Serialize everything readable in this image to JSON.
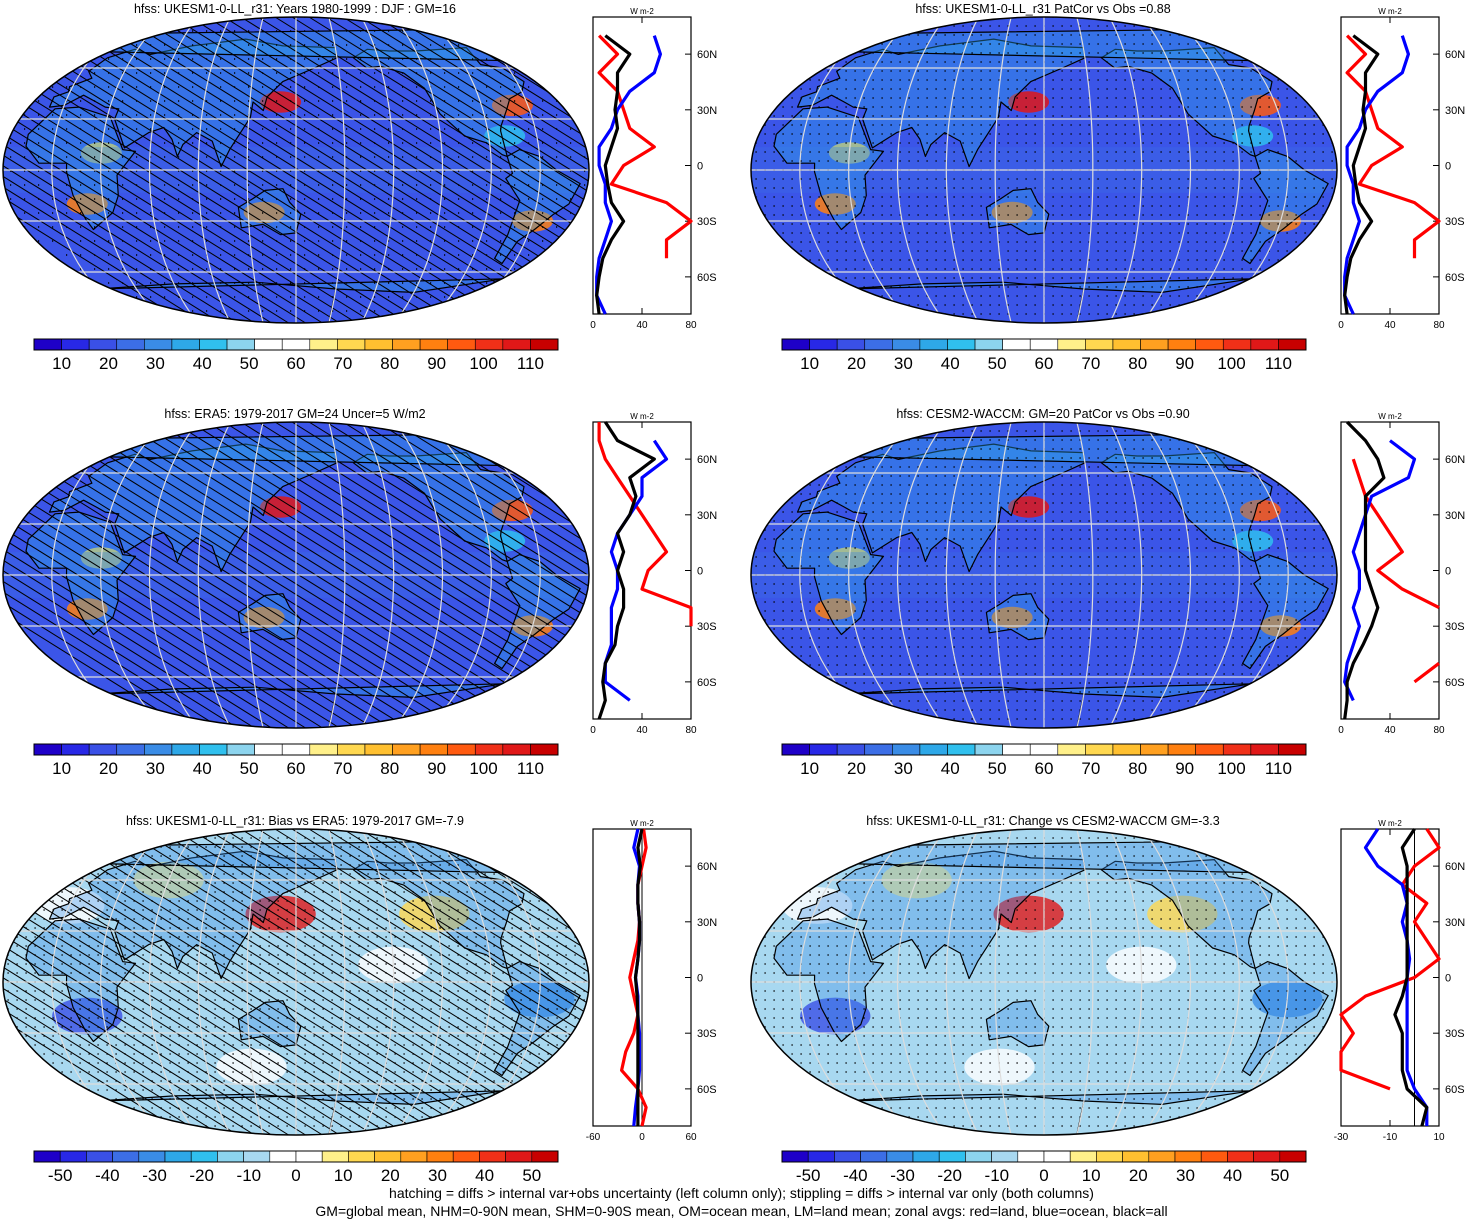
{
  "panels": [
    {
      "title": "hfss: UKESM1-0-LL_r31: Years 1980-1999 : DJF : GM=16",
      "kind": "abs",
      "hatch": true,
      "stipple": "light",
      "colorbar_labels": [
        "10",
        "20",
        "30",
        "40",
        "50",
        "60",
        "70",
        "80",
        "90",
        "100",
        "110"
      ],
      "zonal": {
        "units": "W m-2",
        "x_ticks": [
          "0",
          "40",
          "80"
        ],
        "y_ticks": [
          "60N",
          "30N",
          "0",
          "30S",
          "60S"
        ]
      }
    },
    {
      "title": "hfss: UKESM1-0-LL_r31 PatCor vs Obs =0.88",
      "kind": "abs",
      "hatch": false,
      "stipple": "dense",
      "colorbar_labels": [
        "10",
        "20",
        "30",
        "40",
        "50",
        "60",
        "70",
        "80",
        "90",
        "100",
        "110"
      ],
      "zonal": {
        "units": "W m-2",
        "x_ticks": [
          "0",
          "40",
          "80"
        ],
        "y_ticks": [
          "60N",
          "30N",
          "0",
          "30S",
          "60S"
        ]
      }
    },
    {
      "title": "hfss: ERA5: 1979-2017 GM=24 Uncer=5 W/m2",
      "kind": "abs",
      "hatch": true,
      "stipple": "none",
      "colorbar_labels": [
        "10",
        "20",
        "30",
        "40",
        "50",
        "60",
        "70",
        "80",
        "90",
        "100",
        "110"
      ],
      "zonal": {
        "units": "W m-2",
        "x_ticks": [
          "0",
          "40",
          "80"
        ],
        "y_ticks": [
          "60N",
          "30N",
          "0",
          "30S",
          "60S"
        ]
      }
    },
    {
      "title": "hfss: CESM2-WACCM: GM=20 PatCor vs Obs =0.90",
      "kind": "abs",
      "hatch": false,
      "stipple": "dense",
      "colorbar_labels": [
        "10",
        "20",
        "30",
        "40",
        "50",
        "60",
        "70",
        "80",
        "90",
        "100",
        "110"
      ],
      "zonal": {
        "units": "W m-2",
        "x_ticks": [
          "0",
          "40",
          "80"
        ],
        "y_ticks": [
          "60N",
          "30N",
          "0",
          "30S",
          "60S"
        ]
      }
    },
    {
      "title": "hfss: UKESM1-0-LL_r31: Bias vs ERA5: 1979-2017 GM=-7.9",
      "kind": "diff",
      "hatch": true,
      "stipple": "dense",
      "colorbar_labels": [
        "-50",
        "-40",
        "-30",
        "-20",
        "-10",
        "0",
        "10",
        "20",
        "30",
        "40",
        "50"
      ],
      "zonal": {
        "units": "W m-2",
        "x_ticks": [
          "-60",
          "0",
          "60"
        ],
        "y_ticks": [
          "60N",
          "30N",
          "0",
          "30S",
          "60S"
        ]
      }
    },
    {
      "title": "hfss: UKESM1-0-LL_r31: Change vs CESM2-WACCM GM=-3.3",
      "kind": "diff",
      "hatch": false,
      "stipple": "dense",
      "colorbar_labels": [
        "-50",
        "-40",
        "-30",
        "-20",
        "-10",
        "0",
        "10",
        "20",
        "30",
        "40",
        "50"
      ],
      "zonal": {
        "units": "W m-2",
        "x_ticks": [
          "-30",
          "-10",
          "10"
        ],
        "y_ticks": [
          "60N",
          "30N",
          "0",
          "30S",
          "60S"
        ]
      }
    }
  ],
  "colors": {
    "abs_scale": [
      "#1e00c8",
      "#2828e6",
      "#3a50e6",
      "#3c6ee6",
      "#3a8ce6",
      "#2ea8e8",
      "#30c0ee",
      "#8cd4ee",
      "#ffffff",
      "#ffffff",
      "#fff08a",
      "#ffd850",
      "#ffc030",
      "#ffa020",
      "#ff8010",
      "#ff5a10",
      "#f03018",
      "#e01818",
      "#c80000"
    ],
    "diff_scale": [
      "#1e00c8",
      "#2828e6",
      "#3a50e6",
      "#3c6ee6",
      "#3a8ce6",
      "#2ea8e8",
      "#30c0ee",
      "#8cd4ee",
      "#a8d8f0",
      "#ffffff",
      "#ffffff",
      "#fff08a",
      "#ffd850",
      "#ffc030",
      "#ffa020",
      "#ff8010",
      "#ff5a10",
      "#f03018",
      "#e01818",
      "#c80000"
    ],
    "land_line": "#ff0000",
    "ocean_line": "#0000ff",
    "all_line": "#000000"
  },
  "chart_data": [
    {
      "type": "heatmap",
      "title": "hfss: UKESM1-0-LL_r31: Years 1980-1999 : DJF : GM=16",
      "colorbar": [
        10,
        20,
        30,
        40,
        50,
        60,
        70,
        80,
        90,
        100,
        110
      ],
      "zonal_mean": {
        "lat": [
          80,
          70,
          60,
          50,
          40,
          30,
          20,
          10,
          0,
          -10,
          -20,
          -30,
          -40,
          -50,
          -60,
          -70,
          -80
        ],
        "land": [
          null,
          5,
          20,
          5,
          20,
          25,
          30,
          50,
          25,
          15,
          60,
          85,
          60,
          60,
          null,
          5,
          null
        ],
        "ocean": [
          null,
          50,
          55,
          50,
          30,
          20,
          15,
          5,
          5,
          10,
          10,
          15,
          10,
          5,
          3,
          3,
          10
        ],
        "all": [
          null,
          10,
          30,
          20,
          20,
          18,
          20,
          15,
          10,
          12,
          15,
          25,
          15,
          8,
          5,
          3,
          5
        ]
      }
    },
    {
      "type": "heatmap",
      "title": "hfss: UKESM1-0-LL_r31 PatCor vs Obs =0.88",
      "colorbar": [
        10,
        20,
        30,
        40,
        50,
        60,
        70,
        80,
        90,
        100,
        110
      ],
      "zonal_mean": {
        "lat": [
          80,
          70,
          60,
          50,
          40,
          30,
          20,
          10,
          0,
          -10,
          -20,
          -30,
          -40,
          -50,
          -60,
          -70,
          -80
        ],
        "land": [
          null,
          5,
          20,
          5,
          20,
          25,
          30,
          50,
          25,
          15,
          60,
          85,
          60,
          60,
          null,
          5,
          null
        ],
        "ocean": [
          null,
          50,
          55,
          50,
          30,
          20,
          15,
          5,
          5,
          10,
          10,
          15,
          10,
          5,
          3,
          3,
          10
        ],
        "all": [
          null,
          10,
          30,
          20,
          20,
          18,
          20,
          15,
          10,
          12,
          15,
          25,
          15,
          8,
          5,
          3,
          5
        ]
      }
    },
    {
      "type": "heatmap",
      "title": "hfss: ERA5: 1979-2017 GM=24 Uncer=5 W/m2",
      "colorbar": [
        10,
        20,
        30,
        40,
        50,
        60,
        70,
        80,
        90,
        100,
        110
      ],
      "zonal_mean": {
        "lat": [
          80,
          70,
          60,
          50,
          40,
          30,
          20,
          10,
          0,
          -10,
          -20,
          -30,
          -40,
          -50,
          -60,
          -70,
          -80
        ],
        "land": [
          5,
          5,
          10,
          20,
          30,
          40,
          50,
          60,
          45,
          40,
          80,
          90,
          null,
          70,
          null,
          5,
          null
        ],
        "ocean": [
          null,
          50,
          60,
          40,
          40,
          30,
          20,
          15,
          20,
          20,
          15,
          15,
          15,
          10,
          10,
          30,
          null
        ],
        "all": [
          10,
          20,
          50,
          30,
          35,
          30,
          20,
          25,
          20,
          25,
          25,
          20,
          18,
          10,
          8,
          10,
          5
        ]
      }
    },
    {
      "type": "heatmap",
      "title": "hfss: CESM2-WACCM: GM=20 PatCor vs Obs =0.90",
      "colorbar": [
        10,
        20,
        30,
        40,
        50,
        60,
        70,
        80,
        90,
        100,
        110
      ],
      "zonal_mean": {
        "lat": [
          80,
          70,
          60,
          50,
          40,
          30,
          20,
          10,
          0,
          -10,
          -20,
          -30,
          -40,
          -50,
          -60,
          -70,
          -80
        ],
        "land": [
          null,
          null,
          10,
          15,
          20,
          30,
          40,
          50,
          30,
          50,
          80,
          null,
          null,
          80,
          60,
          null,
          null
        ],
        "ocean": [
          null,
          40,
          60,
          55,
          25,
          20,
          15,
          10,
          15,
          15,
          10,
          15,
          10,
          5,
          3,
          10,
          null
        ],
        "all": [
          5,
          20,
          30,
          35,
          20,
          20,
          20,
          20,
          20,
          25,
          30,
          25,
          18,
          10,
          5,
          5,
          3
        ]
      }
    },
    {
      "type": "heatmap",
      "title": "hfss: UKESM1-0-LL_r31: Bias vs ERA5: 1979-2017 GM=-7.9",
      "colorbar": [
        -50,
        -40,
        -30,
        -20,
        -10,
        0,
        10,
        20,
        30,
        40,
        50
      ],
      "zonal_mean": {
        "lat": [
          80,
          70,
          60,
          50,
          40,
          30,
          20,
          10,
          0,
          -10,
          -20,
          -30,
          -40,
          -50,
          -60,
          -70,
          -80
        ],
        "land": [
          2,
          5,
          0,
          -5,
          -5,
          -3,
          -5,
          -10,
          -15,
          -10,
          -5,
          -10,
          -20,
          -25,
          -5,
          5,
          0
        ],
        "ocean": [
          -5,
          -10,
          -3,
          -5,
          -5,
          -3,
          -3,
          -5,
          -8,
          -5,
          -5,
          -3,
          -3,
          -3,
          -5,
          -8,
          -10
        ],
        "all": [
          0,
          -5,
          -2,
          -5,
          -5,
          -3,
          -3,
          -5,
          -8,
          -6,
          -5,
          -5,
          -5,
          -5,
          -5,
          -5,
          -5
        ]
      }
    },
    {
      "type": "heatmap",
      "title": "hfss: UKESM1-0-LL_r31: Change vs CESM2-WACCM GM=-3.3",
      "colorbar": [
        -50,
        -40,
        -30,
        -20,
        -10,
        0,
        10,
        20,
        30,
        40,
        50
      ],
      "zonal_mean": {
        "lat": [
          80,
          70,
          60,
          50,
          40,
          30,
          20,
          10,
          0,
          -10,
          -20,
          -30,
          -40,
          -50,
          -60,
          -70,
          -80
        ],
        "land": [
          5,
          10,
          0,
          -5,
          5,
          0,
          5,
          10,
          0,
          -20,
          -30,
          -25,
          -40,
          -30,
          -10,
          null,
          null
        ],
        "ocean": [
          -15,
          -20,
          -15,
          -5,
          -3,
          -5,
          -3,
          -2,
          -3,
          -3,
          -3,
          -3,
          -3,
          -3,
          0,
          5,
          5
        ],
        "all": [
          0,
          -5,
          -3,
          -3,
          -3,
          -3,
          -3,
          -3,
          -3,
          -5,
          -8,
          -5,
          -5,
          -5,
          -3,
          5,
          3
        ]
      }
    }
  ],
  "footer": {
    "line1": "hatching = diffs > internal var+obs uncertainty (left column only); stippling = diffs > internal var only (both columns)",
    "line2": "GM=global mean, NHM=0-90N mean, SHM=0-90S mean, OM=ocean mean, LM=land mean; zonal avgs: red=land, blue=ocean, black=all"
  }
}
